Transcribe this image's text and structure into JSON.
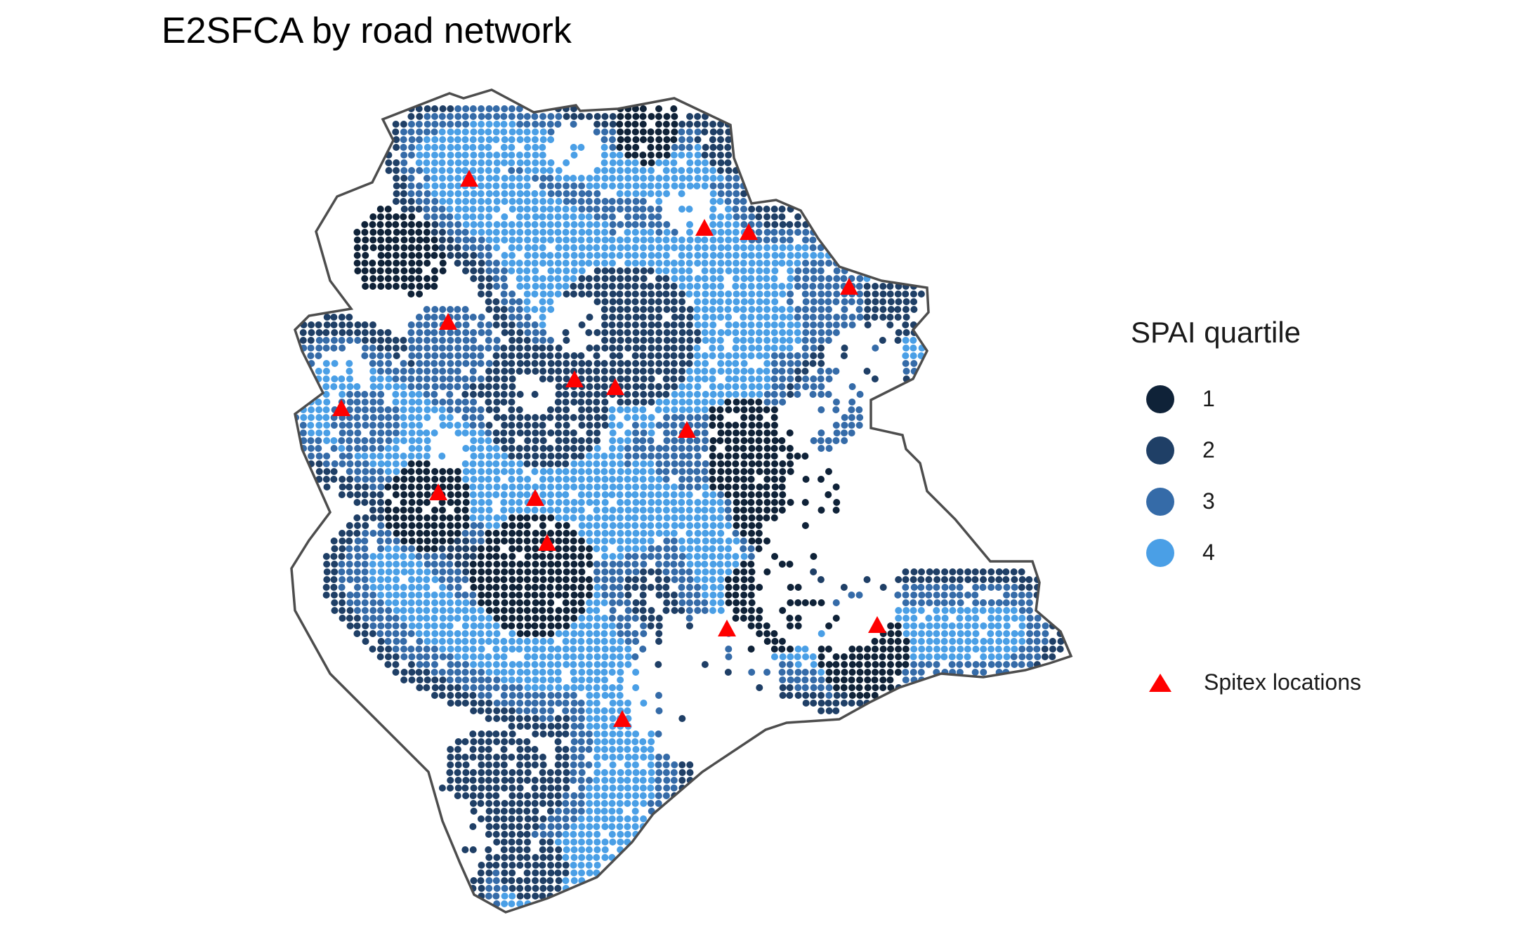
{
  "title": "E2SFCA by road network",
  "legend": {
    "title": "SPAI quartile",
    "items": [
      {
        "label": "1",
        "color": "#0f2238"
      },
      {
        "label": "2",
        "color": "#1f3f66"
      },
      {
        "label": "3",
        "color": "#356ba8"
      },
      {
        "label": "4",
        "color": "#4a9fe6"
      }
    ],
    "spitex_label": "Spitex locations",
    "spitex_color": "#ff0000"
  },
  "colors": {
    "boundary": "#4d4d4d",
    "background": "#ffffff"
  }
}
